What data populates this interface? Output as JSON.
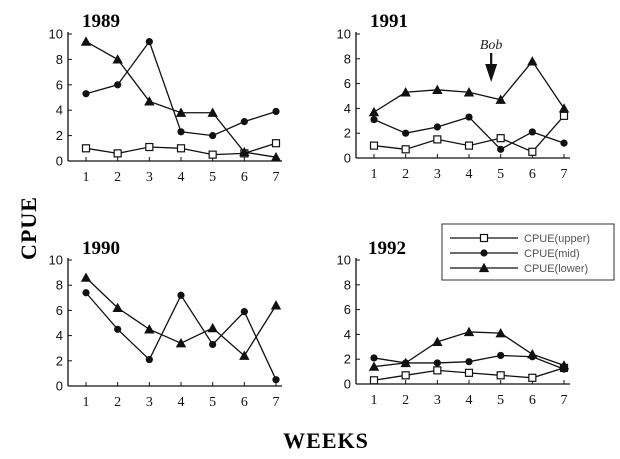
{
  "figure": {
    "ylabel": "CPUE",
    "xlabel": "WEEKS"
  },
  "legend": {
    "placement": "right, between upper-right and lower-right panels",
    "entries": [
      {
        "label": "CPUE(upper)",
        "marker": "open-square"
      },
      {
        "label": "CPUE(mid)",
        "marker": "filled-circle"
      },
      {
        "label": "CPUE(lower)",
        "marker": "filled-triangle"
      }
    ]
  },
  "chart_data": [
    {
      "type": "line",
      "title": "1989",
      "x": [
        1,
        2,
        3,
        4,
        5,
        6,
        7
      ],
      "xticks": [
        "1",
        "2",
        "3",
        "4",
        "5",
        "6",
        "7"
      ],
      "yticks": [
        "0",
        "2",
        "4",
        "6",
        "8",
        "10"
      ],
      "ylim": [
        0,
        10
      ],
      "series": [
        {
          "name": "CPUE(upper)",
          "marker": "open-square",
          "values": [
            1.0,
            0.6,
            1.1,
            1.0,
            0.5,
            0.6,
            1.4
          ]
        },
        {
          "name": "CPUE(mid)",
          "marker": "filled-circle",
          "values": [
            5.3,
            6.0,
            9.4,
            2.3,
            2.0,
            3.1,
            3.9
          ]
        },
        {
          "name": "CPUE(lower)",
          "marker": "filled-triangle",
          "values": [
            9.4,
            8.0,
            4.7,
            3.8,
            3.8,
            0.7,
            0.3
          ]
        }
      ]
    },
    {
      "type": "line",
      "title": "1991",
      "x": [
        1,
        2,
        3,
        4,
        5,
        6,
        7
      ],
      "xticks": [
        "1",
        "2",
        "3",
        "4",
        "5",
        "6",
        "7"
      ],
      "yticks": [
        "0",
        "2",
        "4",
        "6",
        "8",
        "10"
      ],
      "ylim": [
        0,
        10
      ],
      "annotation": {
        "text": "Bob",
        "x": 4.7
      },
      "series": [
        {
          "name": "CPUE(upper)",
          "marker": "open-square",
          "values": [
            1.0,
            0.7,
            1.5,
            1.0,
            1.6,
            0.5,
            3.4
          ]
        },
        {
          "name": "CPUE(mid)",
          "marker": "filled-circle",
          "values": [
            3.1,
            2.0,
            2.5,
            3.3,
            0.7,
            2.1,
            1.2
          ]
        },
        {
          "name": "CPUE(lower)",
          "marker": "filled-triangle",
          "values": [
            3.7,
            5.3,
            5.5,
            5.3,
            4.7,
            7.8,
            4.0
          ]
        }
      ]
    },
    {
      "type": "line",
      "title": "1990",
      "x": [
        1,
        2,
        3,
        4,
        5,
        6,
        7
      ],
      "xticks": [
        "1",
        "2",
        "3",
        "4",
        "5",
        "6",
        "7"
      ],
      "yticks": [
        "0",
        "2",
        "4",
        "6",
        "8",
        "10"
      ],
      "ylim": [
        0,
        10
      ],
      "series": [
        {
          "name": "CPUE(mid)",
          "marker": "filled-circle",
          "values": [
            7.4,
            4.5,
            2.1,
            7.2,
            3.3,
            5.9,
            0.5
          ]
        },
        {
          "name": "CPUE(lower)",
          "marker": "filled-triangle",
          "values": [
            8.6,
            6.2,
            4.5,
            3.4,
            4.6,
            2.4,
            6.4
          ]
        }
      ]
    },
    {
      "type": "line",
      "title": "1992",
      "x": [
        1,
        2,
        3,
        4,
        5,
        6,
        7
      ],
      "xticks": [
        "1",
        "2",
        "3",
        "4",
        "5",
        "6",
        "7"
      ],
      "yticks": [
        "0",
        "2",
        "4",
        "6",
        "8",
        "10"
      ],
      "ylim": [
        0,
        10
      ],
      "series": [
        {
          "name": "CPUE(upper)",
          "marker": "open-square",
          "values": [
            0.3,
            0.7,
            1.1,
            0.9,
            0.7,
            0.5,
            1.3
          ]
        },
        {
          "name": "CPUE(mid)",
          "marker": "filled-circle",
          "values": [
            2.1,
            1.7,
            1.7,
            1.8,
            2.3,
            2.2,
            1.2
          ]
        },
        {
          "name": "CPUE(lower)",
          "marker": "filled-triangle",
          "values": [
            1.4,
            1.7,
            3.4,
            4.2,
            4.1,
            2.4,
            1.5
          ]
        }
      ]
    }
  ]
}
